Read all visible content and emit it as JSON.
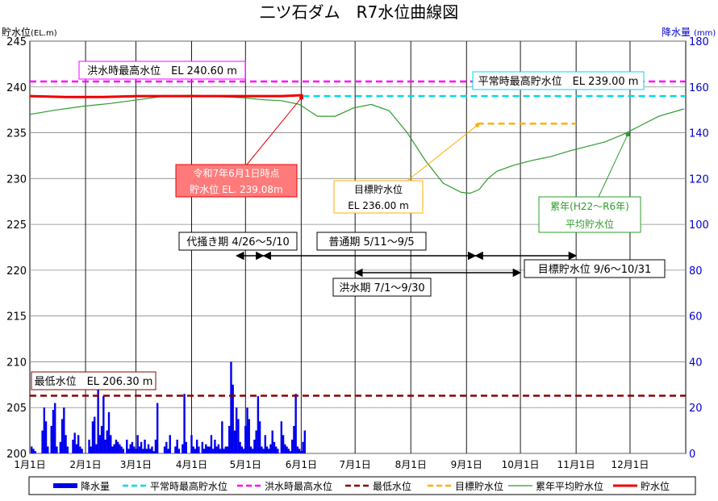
{
  "chart_data": {
    "type": "line",
    "title": "二ツ石ダム　R7水位曲線図",
    "ylabel_left": "貯水位",
    "ylabel_left_unit": "(EL.m)",
    "ylabel_right": "降水量",
    "ylabel_right_unit": "(mm)",
    "ylim_left": [
      200,
      245
    ],
    "ylim_right": [
      0,
      180
    ],
    "yticks_left": [
      200,
      205,
      210,
      215,
      220,
      225,
      230,
      235,
      240,
      245
    ],
    "yticks_right": [
      0,
      20,
      40,
      60,
      80,
      100,
      120,
      140,
      160,
      180
    ],
    "x_start": "1月1日",
    "month_labels": [
      "1月1日",
      "2月1日",
      "3月1日",
      "4月1日",
      "5月1日",
      "6月1日",
      "7月1日",
      "8月1日",
      "9月1日",
      "10月1日",
      "11月1日",
      "12月1日"
    ],
    "grid": true,
    "legend_position": "bottom",
    "colors": {
      "rain": "#0000ee",
      "normal_max": "#00d8e8",
      "flood_max": "#ff00ff",
      "min_level": "#8b0000",
      "target": "#ffb000",
      "avg": "#2e9b2e",
      "level": "#ee0000",
      "right_axis": "#0000cc"
    },
    "series": [
      {
        "name": "降水量",
        "type": "bar",
        "axis": "right",
        "x": [
          1,
          2,
          3,
          7,
          8,
          9,
          10,
          12,
          13,
          14,
          15,
          17,
          18,
          19,
          20,
          21,
          24,
          25,
          26,
          27,
          28,
          29,
          33,
          34,
          35,
          36,
          37,
          38,
          39,
          40,
          41,
          42,
          43,
          44,
          45,
          46,
          47,
          48,
          49,
          50,
          51,
          52,
          54,
          55,
          56,
          57,
          58,
          59,
          60,
          61,
          62,
          63,
          64,
          65,
          66,
          67,
          68,
          69,
          70,
          71,
          75,
          76,
          77,
          78,
          81,
          82,
          83,
          85,
          86,
          87,
          90,
          91,
          92,
          93,
          94,
          96,
          97,
          98,
          99,
          100,
          101,
          102,
          103,
          104,
          105,
          106,
          107,
          108,
          109,
          110,
          111,
          112,
          113,
          114,
          115,
          116,
          117,
          118,
          119,
          120,
          121,
          122,
          123,
          124,
          125,
          126,
          127,
          128,
          129,
          130,
          131,
          132,
          133,
          134,
          135,
          136,
          137,
          138,
          140,
          141,
          142,
          143,
          144,
          145,
          146,
          147,
          148,
          149,
          150,
          151,
          152,
          153
        ],
        "values": [
          3,
          2,
          1,
          10,
          20,
          14,
          3,
          12,
          19,
          22,
          3,
          5,
          15,
          20,
          8,
          3,
          6,
          9,
          4,
          8,
          3,
          2,
          6,
          3,
          14,
          16,
          4,
          28,
          8,
          12,
          25,
          6,
          10,
          18,
          8,
          3,
          4,
          6,
          5,
          4,
          3,
          2,
          6,
          2,
          4,
          5,
          3,
          2,
          8,
          3,
          5,
          2,
          6,
          2,
          4,
          2,
          3,
          1,
          6,
          22,
          3,
          5,
          2,
          8,
          3,
          6,
          2,
          4,
          26,
          5,
          8,
          3,
          2,
          6,
          3,
          5,
          2,
          4,
          3,
          3,
          8,
          2,
          6,
          3,
          4,
          2,
          14,
          2,
          3,
          3,
          12,
          40,
          30,
          10,
          20,
          15,
          5,
          3,
          2,
          12,
          20,
          15,
          3,
          2,
          6,
          10,
          25,
          14,
          3,
          2,
          8,
          3,
          2,
          4,
          10,
          5,
          3,
          2,
          14,
          8,
          4,
          3,
          2,
          1,
          6,
          12,
          26,
          3,
          2,
          1,
          5,
          10
        ]
      },
      {
        "name": "平常時最高貯水位",
        "value": 239.0
      },
      {
        "name": "洪水時最高水位",
        "value": 240.6
      },
      {
        "name": "最低水位",
        "value": 206.3
      },
      {
        "name": "目標貯水位",
        "value": 236.0,
        "x_range": [
          249,
          304
        ]
      },
      {
        "name": "累年平均貯水位",
        "x": [
          0,
          15,
          30,
          45,
          60,
          75,
          90,
          100,
          110,
          120,
          130,
          140,
          150,
          160,
          170,
          180,
          190,
          200,
          210,
          215,
          220,
          230,
          240,
          245,
          250,
          255,
          260,
          270,
          280,
          290,
          300,
          310,
          320,
          330,
          340,
          350,
          364
        ],
        "y": [
          237.0,
          237.5,
          237.9,
          238.2,
          238.6,
          239.0,
          239.1,
          239.0,
          238.9,
          238.8,
          238.6,
          238.5,
          238.1,
          236.8,
          236.8,
          237.7,
          238.1,
          237.4,
          235.0,
          233.5,
          232.0,
          229.5,
          228.5,
          228.4,
          228.8,
          230.0,
          230.8,
          231.5,
          232.0,
          232.4,
          233.0,
          233.5,
          234.0,
          234.8,
          235.8,
          236.8,
          237.6
        ]
      },
      {
        "name": "貯水位",
        "x": [
          0,
          20,
          40,
          60,
          80,
          100,
          120,
          140,
          152
        ],
        "y": [
          239.0,
          238.9,
          238.9,
          239.0,
          239.0,
          239.0,
          239.0,
          239.0,
          239.1
        ]
      }
    ],
    "period_arrows": [
      {
        "label": "代掻き期 4/26〜5/10",
        "from": 115,
        "to": 130
      },
      {
        "label": "普通期 5/11〜9/5",
        "from": 130,
        "to": 248
      },
      {
        "label": "洪水期 7/1〜9/30",
        "from": 181,
        "to": 273
      },
      {
        "label": "目標貯水位 9/6〜10/31",
        "from": 248,
        "to": 304
      }
    ],
    "annotations": {
      "flood_max": "洪水時最高水位　EL 240.60 m",
      "normal_max": "平常時最高貯水位　EL 239.00 m",
      "min_level": "最低水位　EL 206.30 m",
      "current_line1": "令和7年6月1日時点",
      "current_line2": "貯水位 EL. 239.08m",
      "target_line1": "目標貯水位",
      "target_line2": "EL 236.00 m",
      "avg_line1": "累年(H22〜R6年)",
      "avg_line2": "平均貯水位"
    },
    "legend": [
      "降水量",
      "平常時最高貯水位",
      "洪水時最高水位",
      "最低水位",
      "目標貯水位",
      "累年平均貯水位",
      "貯水位"
    ]
  }
}
